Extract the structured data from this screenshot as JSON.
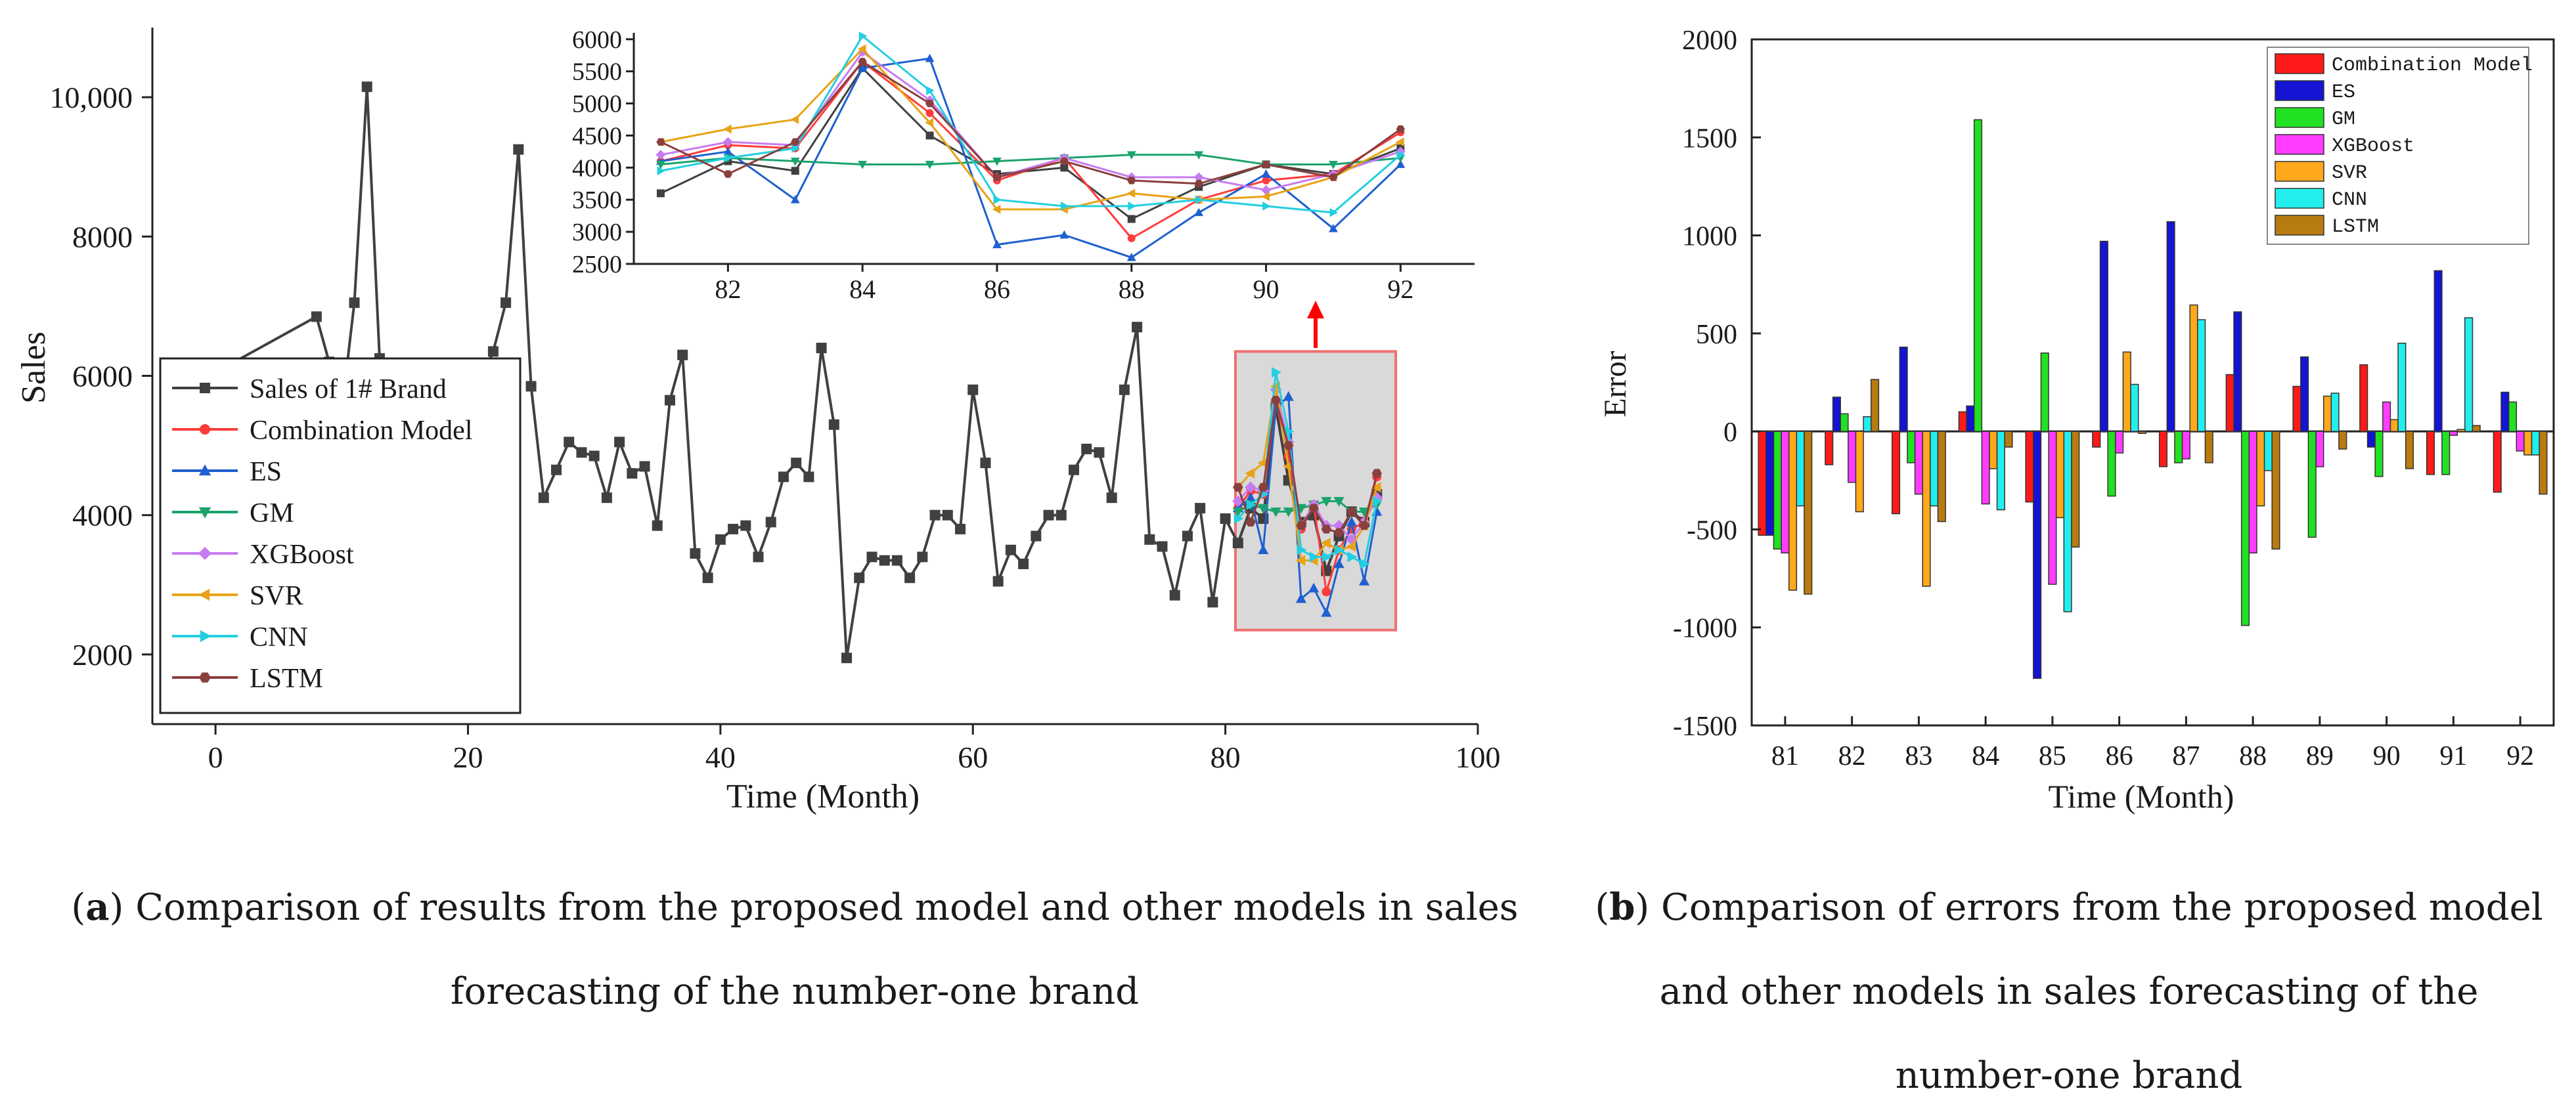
{
  "colors": {
    "sales": "#404040",
    "combination": "#ff3c3c",
    "es": "#1f5fd0",
    "gm": "#1aa36b",
    "xgboost": "#c77bf0",
    "svr": "#e8a317",
    "cnn": "#22cfe0",
    "lstm": "#8a3f3f",
    "err_combination": "#ff1a1a",
    "err_es": "#1414d2",
    "err_gm": "#22e022",
    "err_xgboost": "#ff3cff",
    "err_svr": "#ffa81c",
    "err_cnn": "#22eeee",
    "err_lstm": "#b87b10",
    "zoom_box_fill": "#d9d9d9",
    "zoom_box_border": "#f07070",
    "arrow": "#ff0000"
  },
  "captions": {
    "a_label": "a",
    "a_text": ") Comparison of results from the proposed model and other models in sales forecasting of the number-one brand",
    "b_label": "b",
    "b_text": ") Comparison of errors from the proposed model and other models in sales forecasting of the number-one brand"
  },
  "chart_data": [
    {
      "id": "a-main",
      "type": "line",
      "xlabel": "Time (Month)",
      "ylabel": "Sales",
      "xlim": [
        -5,
        100
      ],
      "ylim": [
        1000,
        11000
      ],
      "xticks": [
        "0",
        "20",
        "40",
        "60",
        "80",
        "100"
      ],
      "yticks": [
        "2000",
        "4000",
        "6000",
        "8000",
        "10,000"
      ],
      "legend_position": "bottom-left",
      "series": [
        {
          "name": "Sales of 1# Brand",
          "color_key": "sales",
          "marker": "square",
          "x": [
            1,
            8,
            9,
            10,
            11,
            12,
            13,
            21,
            22,
            23,
            24,
            25,
            26,
            27,
            28,
            29,
            30,
            31,
            32,
            33,
            34,
            35,
            36,
            37,
            38,
            39,
            40,
            41,
            42,
            43,
            44,
            45,
            46,
            47,
            48,
            49,
            50,
            51,
            52,
            53,
            54,
            55,
            56,
            57,
            58,
            59,
            60,
            61,
            62,
            63,
            64,
            65,
            66,
            67,
            68,
            69,
            70,
            71,
            72,
            73,
            74,
            75,
            76,
            77,
            78,
            79,
            80,
            81,
            82,
            83,
            84,
            85,
            86,
            87,
            88,
            89,
            90,
            91,
            92
          ],
          "y": [
            6150,
            6850,
            6200,
            5500,
            7050,
            10150,
            6250,
            5900,
            6350,
            7050,
            9250,
            5850,
            4250,
            4650,
            5050,
            4900,
            4850,
            4250,
            5050,
            4600,
            4700,
            3850,
            5650,
            6300,
            3450,
            3100,
            3650,
            3800,
            3850,
            3400,
            3900,
            4550,
            4750,
            4550,
            6400,
            5300,
            1950,
            3100,
            3400,
            3350,
            3350,
            3100,
            3400,
            4000,
            4000,
            3800,
            5800,
            4750,
            3050,
            3500,
            3300,
            3700,
            4000,
            4000,
            4650,
            4950,
            4900,
            4250,
            5800,
            6700,
            3650,
            3550,
            2850,
            3700,
            4100,
            2750,
            3950,
            3600,
            4100,
            3950,
            5550,
            4500,
            3900,
            4000,
            3200,
            3700,
            4050,
            3900,
            4300
          ]
        },
        {
          "name": "Combination Model",
          "color_key": "combination",
          "marker": "circle",
          "x": [
            81,
            82,
            83,
            84,
            85,
            86,
            87,
            88,
            89,
            90,
            91,
            92
          ],
          "y": [
            4100,
            4350,
            4300,
            5650,
            4850,
            3800,
            4150,
            2900,
            3500,
            3800,
            3900,
            4550
          ]
        },
        {
          "name": "ES",
          "color_key": "es",
          "marker": "triangle-up",
          "x": [
            81,
            82,
            83,
            84,
            85,
            86,
            87,
            88,
            89,
            90,
            91,
            92
          ],
          "y": [
            4100,
            4250,
            3500,
            5550,
            5700,
            2800,
            2950,
            2600,
            3300,
            3900,
            3050,
            4050
          ]
        },
        {
          "name": "GM",
          "color_key": "gm",
          "marker": "triangle-down",
          "x": [
            81,
            82,
            83,
            84,
            85,
            86,
            87,
            88,
            89,
            90,
            91,
            92
          ],
          "y": [
            4050,
            4150,
            4100,
            4050,
            4050,
            4100,
            4150,
            4200,
            4200,
            4050,
            4050,
            4150
          ]
        },
        {
          "name": "XGBoost",
          "color_key": "xgboost",
          "marker": "diamond",
          "x": [
            81,
            82,
            83,
            84,
            85,
            86,
            87,
            88,
            89,
            90,
            91,
            92
          ],
          "y": [
            4200,
            4400,
            4350,
            5800,
            5050,
            3850,
            4150,
            3850,
            3850,
            3650,
            3900,
            4250
          ]
        },
        {
          "name": "SVR",
          "color_key": "svr",
          "marker": "triangle-left",
          "x": [
            81,
            82,
            83,
            84,
            85,
            86,
            87,
            88,
            89,
            90,
            91,
            92
          ],
          "y": [
            4400,
            4600,
            4750,
            5850,
            4700,
            3350,
            3350,
            3600,
            3500,
            3550,
            3850,
            4400
          ]
        },
        {
          "name": "CNN",
          "color_key": "cnn",
          "marker": "triangle-right",
          "x": [
            81,
            82,
            83,
            84,
            85,
            86,
            87,
            88,
            89,
            90,
            91,
            92
          ],
          "y": [
            3950,
            4150,
            4300,
            6050,
            5200,
            3500,
            3400,
            3400,
            3500,
            3400,
            3300,
            4200
          ]
        },
        {
          "name": "LSTM",
          "color_key": "lstm",
          "marker": "hexagon",
          "x": [
            81,
            82,
            83,
            84,
            85,
            86,
            87,
            88,
            89,
            90,
            91,
            92
          ],
          "y": [
            4400,
            3900,
            4400,
            5650,
            5000,
            3850,
            4100,
            3800,
            3750,
            4050,
            3850,
            4600
          ]
        }
      ]
    },
    {
      "id": "a-inset",
      "type": "line",
      "xlim": [
        80.6,
        93.1
      ],
      "ylim": [
        2500,
        6100
      ],
      "xticks": [
        "82",
        "84",
        "86",
        "88",
        "90",
        "92"
      ],
      "yticks": [
        "2500",
        "3000",
        "3500",
        "4000",
        "4500",
        "5000",
        "5500",
        "6000"
      ],
      "note": "zoomed view of months 81-92 (same series as the main plot)"
    },
    {
      "id": "b",
      "type": "bar",
      "xlabel": "Time (Month)",
      "ylabel": "Error",
      "ylim": [
        -1500,
        2000
      ],
      "yticks": [
        "-1500",
        "-1000",
        "-500",
        "0",
        "500",
        "1000",
        "1500",
        "2000"
      ],
      "categories": [
        "81",
        "82",
        "83",
        "84",
        "85",
        "86",
        "87",
        "88",
        "89",
        "90",
        "91",
        "92"
      ],
      "legend_position": "top-right",
      "series": [
        {
          "name": "Combination Model",
          "color_key": "err_combination",
          "values": [
            -530,
            -170,
            -420,
            100,
            -360,
            -80,
            -180,
            290,
            230,
            340,
            -220,
            -310
          ]
        },
        {
          "name": "ES",
          "color_key": "err_es",
          "values": [
            -530,
            175,
            430,
            130,
            -1260,
            970,
            1070,
            610,
            380,
            -80,
            820,
            200
          ]
        },
        {
          "name": "GM",
          "color_key": "err_gm",
          "values": [
            -600,
            90,
            -160,
            1590,
            400,
            -330,
            -160,
            -990,
            -540,
            -230,
            -220,
            150
          ]
        },
        {
          "name": "XGBoost",
          "color_key": "err_xgboost",
          "values": [
            -620,
            -260,
            -320,
            -370,
            -780,
            -110,
            -140,
            -620,
            -180,
            150,
            -20,
            -100
          ]
        },
        {
          "name": "SVR",
          "color_key": "err_svr",
          "values": [
            -810,
            -410,
            -790,
            -190,
            -440,
            405,
            645,
            -380,
            180,
            60,
            10,
            -120
          ]
        },
        {
          "name": "CNN",
          "color_key": "err_cnn",
          "values": [
            -380,
            75,
            -380,
            -400,
            -920,
            240,
            570,
            -200,
            195,
            450,
            580,
            -120
          ]
        },
        {
          "name": "LSTM",
          "color_key": "err_lstm",
          "values": [
            -830,
            265,
            -460,
            -80,
            -590,
            -10,
            -160,
            -600,
            -90,
            -190,
            30,
            -320
          ]
        }
      ]
    }
  ]
}
